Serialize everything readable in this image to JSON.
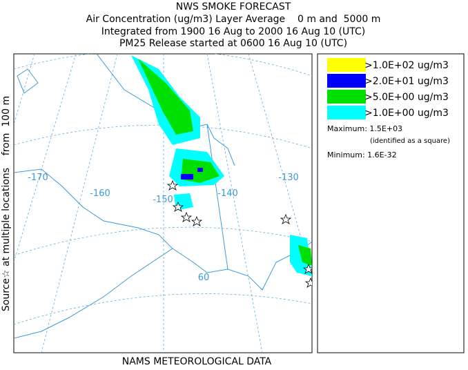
{
  "header": {
    "title": "NWS SMOKE FORECAST",
    "lines": [
      "Air Concentration (ug/m3) Layer Average    0 m and  5000 m",
      "Integrated from 1900 16 Aug to 2000 16 Aug 10 (UTC)",
      "PM25 Release started at 0600 16 Aug 10 (UTC)"
    ]
  },
  "map": {
    "longitude_labels": [
      "-170",
      "-160",
      "-150",
      "-140",
      "-130"
    ],
    "latitude_labels": [
      "60"
    ]
  },
  "legend": {
    "items": [
      {
        "label": ">1.0E+02 ug/m3",
        "color": "#ffff00"
      },
      {
        "label": ">2.0E+01 ug/m3",
        "color": "#0000ff"
      },
      {
        "label": ">5.0E+00 ug/m3",
        "color": "#00e000"
      },
      {
        "label": ">1.0E+00 ug/m3",
        "color": "#00ffff"
      }
    ],
    "maximum": "Maximum: 1.5E+03",
    "maximum_note": "(identified as a square)",
    "minimum": "Minimum: 1.6E-32"
  },
  "side_label": "Source☆ at multiple locations    from  100 m",
  "footer": "NAMS METEOROLOGICAL DATA"
}
